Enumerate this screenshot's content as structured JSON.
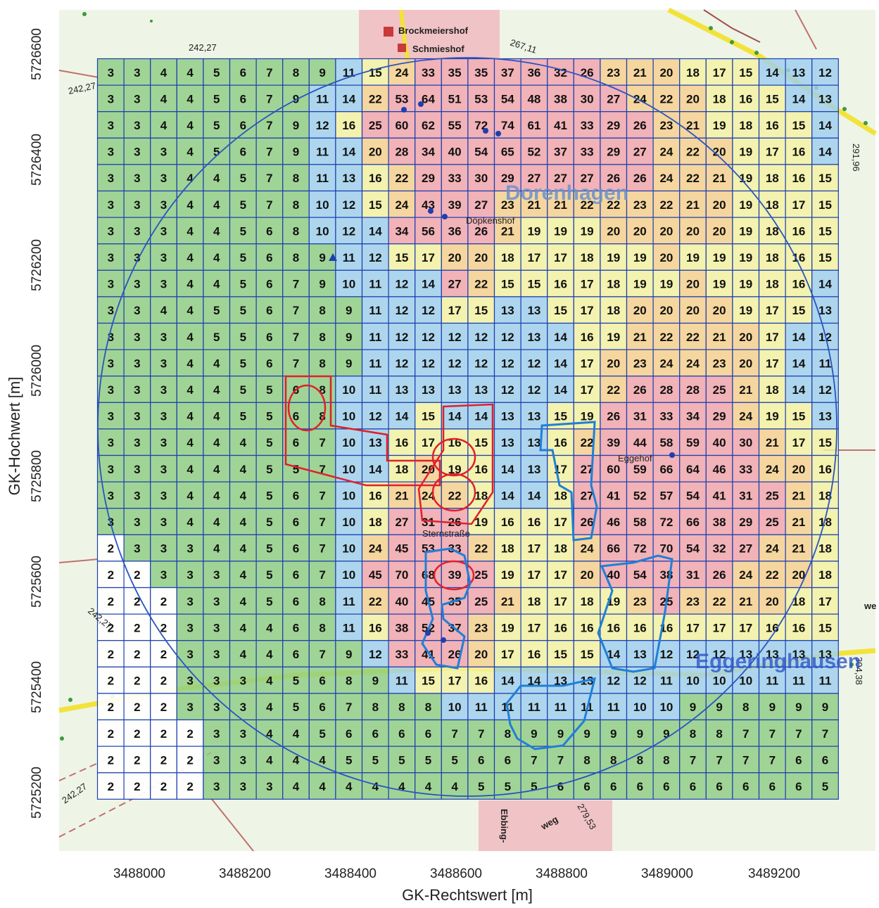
{
  "axes": {
    "x_title": "GK-Rechtswert [m]",
    "y_title": "GK-Hochwert [m]",
    "x_ticks": [
      "3488000",
      "3488200",
      "3488400",
      "3488600",
      "3488800",
      "3489000",
      "3489200"
    ],
    "y_ticks": [
      "5726600",
      "5726400",
      "5726200",
      "5726000",
      "5725800",
      "5725600",
      "5725400",
      "5725200"
    ]
  },
  "map_labels": {
    "brockmeiershof": "Brockmeiershof",
    "schmieshof": "Schmieshof",
    "dorenhagen": "Dorenhagen",
    "eggeringhausen": "Eggeringhausen",
    "eggehof": "Eggehof",
    "doepkenshof": "Döpkenshof",
    "elev_242_top": "242,27",
    "elev_242_left": "242,27",
    "elev_242_mid": "242,27",
    "elev_242_bottom": "242,27",
    "elev_267": "267,11",
    "elev_291": "291,96",
    "elev_304": "304,38",
    "elev_279": "279,53",
    "ebbing": "Ebbing-",
    "weg": "weg",
    "sternstrasse": "Sternstraße",
    "we": "we"
  },
  "colors": {
    "white": "#ffffff",
    "green": "#8fcd84",
    "blue": "#9fd0ef",
    "yellow": "#f4f1a2",
    "orange": "#f7cf8e",
    "pink": "#f2a3ad",
    "grid_line": "#1d3fb0",
    "circle": "#2a54c0",
    "red_outline": "#e0202a",
    "blue_outline": "#1f7fd8",
    "water_marker": "#1d3fb0"
  },
  "legend_thresholds": [
    2,
    10,
    15,
    20,
    25
  ],
  "chart_data": {
    "type": "heatmap",
    "description_of_values": "grid cell values read from the map",
    "rows": [
      [
        3,
        3,
        4,
        4,
        5,
        6,
        7,
        8,
        9,
        11,
        15,
        24,
        33,
        35,
        35,
        37,
        36,
        32,
        26,
        23,
        21,
        20,
        18,
        17,
        15,
        14,
        13,
        12
      ],
      [
        3,
        3,
        4,
        4,
        5,
        6,
        7,
        9,
        11,
        14,
        22,
        53,
        64,
        51,
        53,
        54,
        48,
        38,
        30,
        27,
        24,
        22,
        20,
        18,
        16,
        15,
        14,
        13
      ],
      [
        3,
        3,
        4,
        4,
        5,
        6,
        7,
        9,
        12,
        16,
        25,
        60,
        62,
        55,
        72,
        74,
        61,
        41,
        33,
        29,
        26,
        23,
        21,
        19,
        18,
        16,
        15,
        14
      ],
      [
        3,
        3,
        3,
        4,
        5,
        6,
        7,
        9,
        11,
        14,
        20,
        28,
        34,
        40,
        54,
        65,
        52,
        37,
        33,
        29,
        27,
        24,
        22,
        20,
        19,
        17,
        16,
        14
      ],
      [
        3,
        3,
        3,
        4,
        4,
        5,
        7,
        8,
        11,
        13,
        16,
        22,
        29,
        33,
        30,
        29,
        27,
        27,
        27,
        26,
        26,
        24,
        22,
        21,
        19,
        18,
        16,
        15
      ],
      [
        3,
        3,
        3,
        4,
        4,
        5,
        7,
        8,
        10,
        12,
        15,
        24,
        43,
        39,
        27,
        23,
        21,
        21,
        22,
        22,
        23,
        22,
        21,
        20,
        19,
        18,
        17,
        15
      ],
      [
        3,
        3,
        3,
        4,
        4,
        5,
        6,
        8,
        10,
        12,
        14,
        34,
        56,
        36,
        26,
        21,
        19,
        19,
        19,
        20,
        20,
        20,
        20,
        20,
        19,
        18,
        16,
        15
      ],
      [
        3,
        3,
        3,
        4,
        4,
        5,
        6,
        8,
        9,
        11,
        12,
        15,
        17,
        20,
        20,
        18,
        17,
        17,
        18,
        19,
        19,
        20,
        19,
        19,
        19,
        18,
        16,
        15
      ],
      [
        3,
        3,
        3,
        4,
        4,
        5,
        6,
        7,
        9,
        10,
        11,
        12,
        14,
        27,
        22,
        15,
        15,
        16,
        17,
        18,
        19,
        19,
        20,
        19,
        19,
        18,
        16,
        14
      ],
      [
        3,
        3,
        4,
        4,
        5,
        5,
        6,
        7,
        8,
        9,
        11,
        12,
        12,
        17,
        15,
        13,
        13,
        15,
        17,
        18,
        20,
        20,
        20,
        20,
        19,
        17,
        15,
        13
      ],
      [
        3,
        3,
        3,
        4,
        5,
        5,
        6,
        7,
        8,
        9,
        11,
        12,
        12,
        12,
        12,
        12,
        13,
        14,
        16,
        19,
        21,
        22,
        22,
        21,
        20,
        17,
        14,
        12
      ],
      [
        3,
        3,
        3,
        4,
        4,
        5,
        6,
        7,
        8,
        9,
        11,
        12,
        12,
        12,
        12,
        12,
        12,
        14,
        17,
        20,
        23,
        24,
        24,
        23,
        20,
        17,
        14,
        11
      ],
      [
        3,
        3,
        3,
        4,
        4,
        5,
        5,
        6,
        8,
        10,
        11,
        13,
        13,
        13,
        13,
        12,
        12,
        14,
        17,
        22,
        26,
        28,
        28,
        25,
        21,
        18,
        14,
        12
      ],
      [
        3,
        3,
        3,
        4,
        4,
        5,
        5,
        6,
        8,
        10,
        12,
        14,
        15,
        14,
        14,
        13,
        13,
        15,
        19,
        26,
        31,
        33,
        34,
        29,
        24,
        19,
        15,
        13
      ],
      [
        3,
        3,
        3,
        4,
        4,
        4,
        5,
        6,
        7,
        10,
        13,
        16,
        17,
        16,
        15,
        13,
        13,
        16,
        22,
        39,
        44,
        58,
        59,
        40,
        30,
        21,
        17,
        15
      ],
      [
        3,
        3,
        3,
        4,
        4,
        4,
        5,
        5,
        7,
        10,
        14,
        18,
        20,
        19,
        16,
        14,
        13,
        17,
        27,
        60,
        59,
        66,
        64,
        46,
        33,
        24,
        20,
        16
      ],
      [
        3,
        3,
        3,
        4,
        4,
        4,
        5,
        6,
        7,
        10,
        16,
        21,
        24,
        22,
        18,
        14,
        14,
        18,
        27,
        41,
        52,
        57,
        54,
        41,
        31,
        25,
        21,
        18
      ],
      [
        3,
        3,
        3,
        4,
        4,
        4,
        5,
        6,
        7,
        10,
        18,
        27,
        31,
        26,
        19,
        16,
        16,
        17,
        26,
        46,
        58,
        72,
        66,
        38,
        29,
        25,
        21,
        18
      ],
      [
        2,
        3,
        3,
        3,
        4,
        4,
        5,
        6,
        7,
        10,
        24,
        45,
        53,
        33,
        22,
        18,
        17,
        18,
        24,
        66,
        72,
        70,
        54,
        32,
        27,
        24,
        21,
        18
      ],
      [
        2,
        2,
        3,
        3,
        3,
        4,
        5,
        6,
        7,
        10,
        45,
        70,
        68,
        39,
        25,
        19,
        17,
        17,
        20,
        40,
        54,
        38,
        31,
        26,
        24,
        22,
        20,
        18
      ],
      [
        2,
        2,
        2,
        3,
        3,
        4,
        5,
        6,
        8,
        11,
        22,
        40,
        45,
        35,
        25,
        21,
        18,
        17,
        18,
        19,
        23,
        25,
        23,
        22,
        21,
        20,
        18,
        17
      ],
      [
        2,
        2,
        2,
        3,
        3,
        4,
        4,
        6,
        8,
        11,
        16,
        38,
        52,
        37,
        23,
        19,
        17,
        16,
        16,
        16,
        16,
        16,
        17,
        17,
        17,
        16,
        16,
        15
      ],
      [
        2,
        2,
        2,
        3,
        3,
        4,
        4,
        6,
        7,
        9,
        12,
        33,
        41,
        26,
        20,
        17,
        16,
        15,
        15,
        14,
        13,
        12,
        12,
        12,
        13,
        13,
        13,
        13
      ],
      [
        2,
        2,
        2,
        3,
        3,
        3,
        4,
        5,
        6,
        8,
        9,
        11,
        15,
        17,
        16,
        14,
        14,
        13,
        13,
        12,
        12,
        11,
        10,
        10,
        10,
        11,
        11,
        11
      ],
      [
        2,
        2,
        2,
        3,
        3,
        3,
        4,
        5,
        6,
        7,
        8,
        8,
        8,
        10,
        11,
        11,
        11,
        11,
        11,
        11,
        10,
        10,
        9,
        9,
        8,
        9,
        9,
        9
      ],
      [
        2,
        2,
        2,
        2,
        3,
        3,
        4,
        4,
        5,
        6,
        6,
        6,
        6,
        7,
        7,
        8,
        9,
        9,
        9,
        9,
        9,
        9,
        8,
        8,
        7,
        7,
        7,
        7
      ],
      [
        2,
        2,
        2,
        2,
        3,
        3,
        4,
        4,
        4,
        5,
        5,
        5,
        5,
        5,
        6,
        6,
        7,
        7,
        8,
        8,
        8,
        8,
        7,
        7,
        7,
        7,
        6,
        6
      ],
      [
        2,
        2,
        2,
        2,
        3,
        3,
        3,
        4,
        4,
        4,
        4,
        4,
        4,
        4,
        5,
        5,
        5,
        6,
        6,
        6,
        6,
        6,
        6,
        6,
        6,
        6,
        6,
        5
      ]
    ],
    "xlabel": "GK-Rechtswert [m]",
    "ylabel": "GK-Hochwert [m]"
  }
}
